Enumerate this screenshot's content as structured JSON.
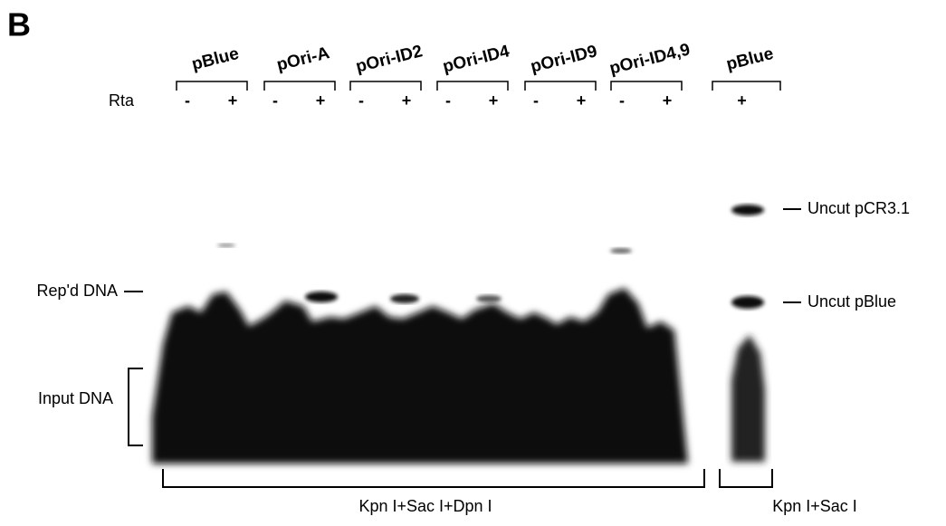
{
  "panel_label": "B",
  "row_label": "Rta",
  "groups": [
    {
      "name": "pBlue",
      "rta": [
        "-",
        "+"
      ]
    },
    {
      "name": "pOri-A",
      "rta": [
        "-",
        "+"
      ]
    },
    {
      "name": "pOri-ID2",
      "rta": [
        "-",
        "+"
      ]
    },
    {
      "name": "pOri-ID4",
      "rta": [
        "-",
        "+"
      ]
    },
    {
      "name": "pOri-ID9",
      "rta": [
        "-",
        "+"
      ]
    },
    {
      "name": "pOri-ID4,9",
      "rta": [
        "-",
        "+"
      ]
    },
    {
      "name": "pBlue",
      "rta": [
        "+"
      ]
    }
  ],
  "right_labels": [
    "Uncut pCR3.1",
    "Uncut pBlue"
  ],
  "left_labels": [
    "Rep'd DNA",
    "Input DNA"
  ],
  "digests": [
    "Kpn I+Sac I+Dpn I",
    "Kpn I+Sac I"
  ]
}
